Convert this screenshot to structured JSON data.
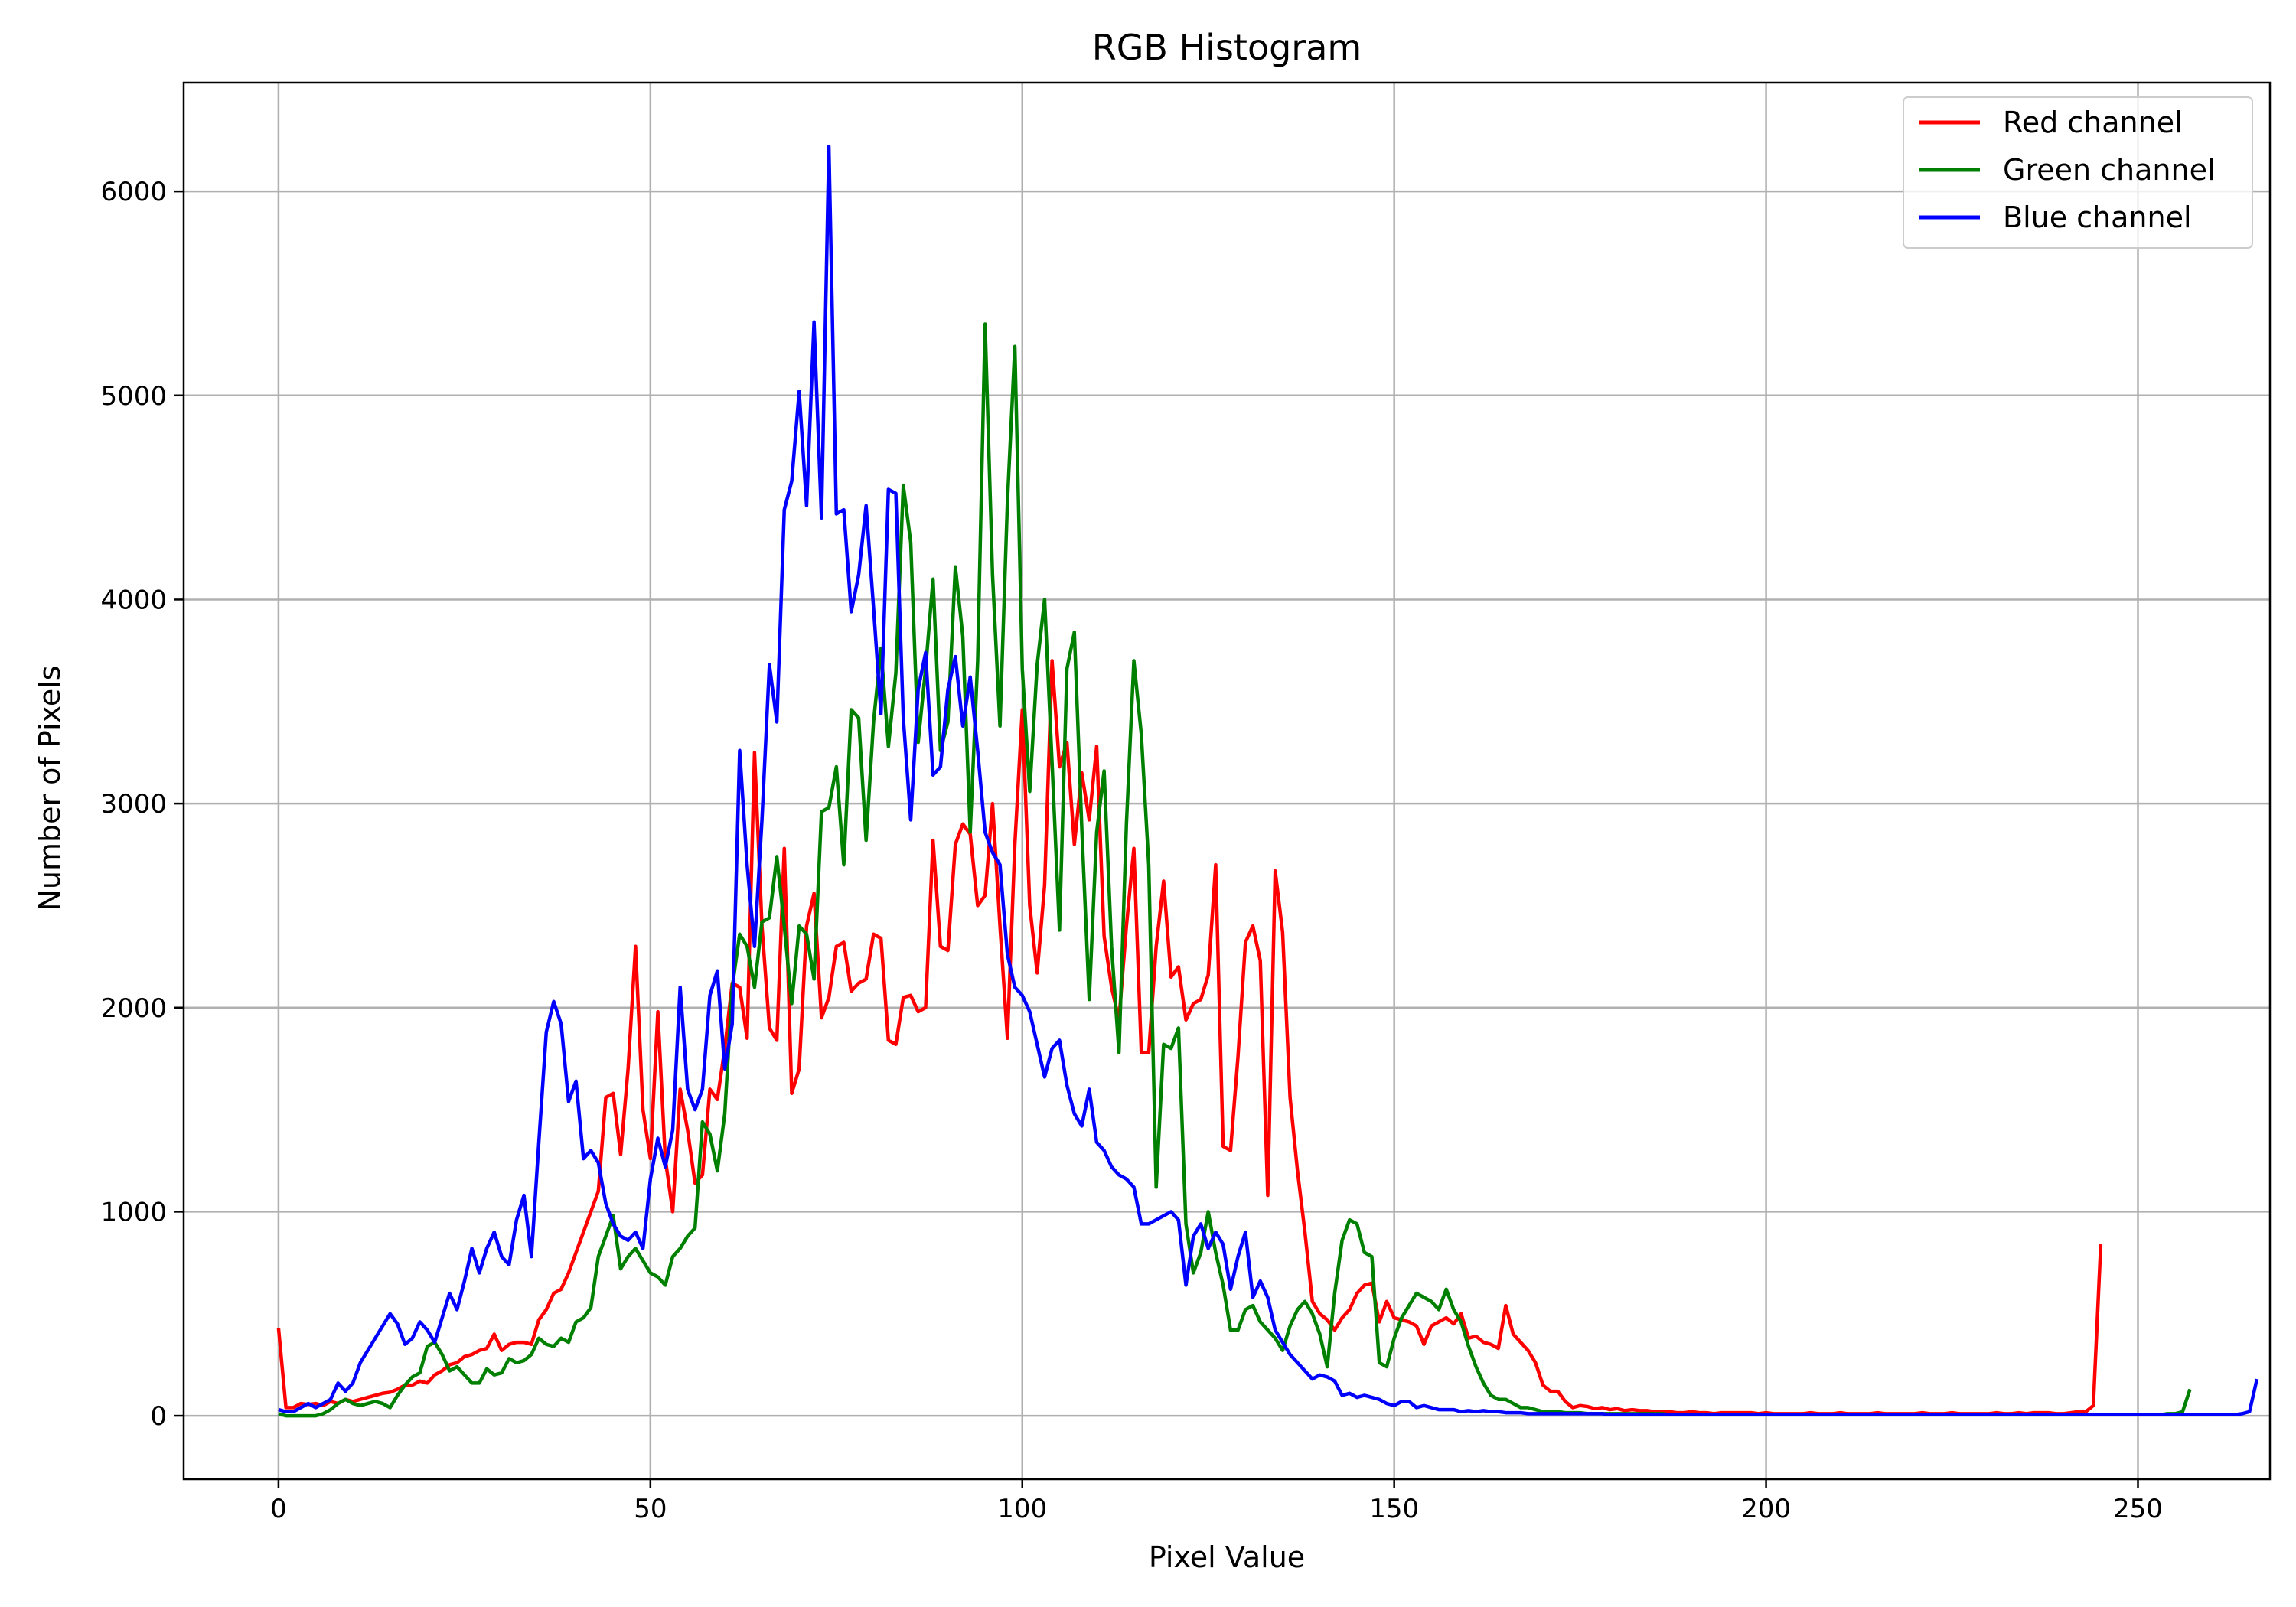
{
  "chart_data": {
    "type": "line",
    "title": "RGB Histogram",
    "xlabel": "Pixel Value",
    "ylabel": "Number of Pixels",
    "xlim": [
      -12.75,
      267.75
    ],
    "ylim": [
      -311,
      6533
    ],
    "xticks": [
      0,
      50,
      100,
      150,
      200,
      250
    ],
    "yticks": [
      0,
      1000,
      2000,
      3000,
      4000,
      5000,
      6000
    ],
    "grid": true,
    "legend_position": "top-right",
    "x_start": 0,
    "series": [
      {
        "name": "Red channel",
        "color": "#ff0000",
        "values": [
          430,
          40,
          40,
          60,
          55,
          60,
          50,
          70,
          60,
          80,
          70,
          80,
          90,
          100,
          110,
          115,
          130,
          150,
          150,
          170,
          160,
          200,
          220,
          250,
          260,
          290,
          300,
          320,
          330,
          400,
          320,
          350,
          360,
          360,
          350,
          470,
          520,
          600,
          620,
          700,
          800,
          900,
          1000,
          1100,
          1560,
          1580,
          1280,
          1700,
          2300,
          1500,
          1260,
          1980,
          1260,
          1000,
          1600,
          1400,
          1140,
          1180,
          1600,
          1550,
          1800,
          2120,
          2100,
          1850,
          3250,
          2400,
          1900,
          1840,
          2780,
          1580,
          1700,
          2400,
          2560,
          1950,
          2050,
          2300,
          2320,
          2080,
          2120,
          2140,
          2360,
          2340,
          1840,
          1820,
          2050,
          2060,
          1980,
          2000,
          2820,
          2300,
          2280,
          2800,
          2900,
          2850,
          2500,
          2550,
          3000,
          2400,
          1850,
          2800,
          3460,
          2500,
          2170,
          2600,
          3700,
          3180,
          3300,
          2800,
          3150,
          2920,
          3280,
          2350,
          2100,
          1940,
          2400,
          2780,
          1780,
          1780,
          2300,
          2620,
          2150,
          2200,
          1940,
          2020,
          2040,
          2160,
          2700,
          1320,
          1300,
          1760,
          2320,
          2400,
          2230,
          1080,
          2670,
          2370,
          1560,
          1200,
          900,
          560,
          500,
          470,
          420,
          480,
          520,
          600,
          640,
          650,
          460,
          560,
          480,
          470,
          460,
          440,
          350,
          440,
          460,
          480,
          450,
          500,
          380,
          390,
          360,
          350,
          330,
          540,
          400,
          360,
          320,
          260,
          150,
          120,
          120,
          70,
          40,
          50,
          45,
          35,
          40,
          30,
          35,
          25,
          30,
          25,
          25,
          20,
          20,
          20,
          15,
          15,
          20,
          15,
          15,
          10,
          15,
          15,
          15,
          15,
          15,
          10,
          15,
          10,
          10,
          10,
          10,
          10,
          15,
          10,
          10,
          10,
          15,
          10,
          10,
          10,
          10,
          15,
          10,
          10,
          10,
          10,
          10,
          15,
          10,
          10,
          10,
          15,
          10,
          10,
          10,
          10,
          10,
          15,
          10,
          10,
          15,
          10,
          15,
          15,
          15,
          10,
          10,
          15,
          20,
          20,
          50,
          840
        ]
      },
      {
        "name": "Green channel",
        "color": "#008000",
        "values": [
          10,
          0,
          0,
          0,
          0,
          0,
          10,
          30,
          60,
          80,
          60,
          50,
          60,
          70,
          60,
          40,
          100,
          150,
          190,
          210,
          340,
          360,
          300,
          220,
          240,
          200,
          160,
          160,
          230,
          200,
          210,
          280,
          260,
          270,
          300,
          380,
          350,
          340,
          380,
          360,
          460,
          480,
          530,
          780,
          880,
          980,
          720,
          780,
          820,
          760,
          700,
          680,
          640,
          780,
          820,
          880,
          920,
          1440,
          1380,
          1200,
          1480,
          2100,
          2360,
          2300,
          2100,
          2420,
          2440,
          2740,
          2400,
          2020,
          2400,
          2360,
          2140,
          2960,
          2980,
          3180,
          2700,
          3460,
          3420,
          2820,
          3400,
          3760,
          3280,
          3640,
          4560,
          4280,
          3300,
          3660,
          4100,
          3260,
          3400,
          4160,
          3820,
          2860,
          3700,
          5350,
          4120,
          3380,
          4480,
          5240,
          3660,
          3060,
          3680,
          4000,
          3200,
          2380,
          3660,
          3840,
          2880,
          2040,
          2860,
          3160,
          2300,
          1780,
          2900,
          3700,
          3340,
          2700,
          1120,
          1820,
          1800,
          1900,
          940,
          700,
          800,
          1000,
          800,
          640,
          420,
          420,
          520,
          540,
          460,
          420,
          380,
          320,
          440,
          520,
          560,
          500,
          400,
          240,
          600,
          860,
          960,
          940,
          800,
          780,
          260,
          240,
          380,
          480,
          540,
          600,
          580,
          560,
          520,
          620,
          520,
          460,
          340,
          240,
          160,
          100,
          80,
          80,
          60,
          40,
          40,
          30,
          20,
          20,
          20,
          15,
          15,
          15,
          10,
          10,
          10,
          10,
          10,
          10,
          10,
          10,
          10,
          10,
          10,
          5,
          5,
          5,
          5,
          5,
          5,
          5,
          5,
          5,
          5,
          5,
          5,
          5,
          5,
          5,
          5,
          5,
          5,
          5,
          5,
          5,
          5,
          5,
          5,
          5,
          5,
          5,
          5,
          5,
          5,
          5,
          5,
          5,
          5,
          5,
          5,
          5,
          5,
          5,
          5,
          5,
          5,
          5,
          5,
          5,
          5,
          5,
          5,
          5,
          5,
          5,
          5,
          5,
          5,
          5,
          5,
          5,
          5,
          5,
          5,
          5,
          5,
          5,
          5,
          5,
          5,
          5,
          10,
          10,
          20,
          130
        ]
      },
      {
        "name": "Blue channel",
        "color": "#0000ff",
        "values": [
          30,
          20,
          20,
          40,
          60,
          40,
          60,
          80,
          160,
          120,
          160,
          260,
          320,
          380,
          440,
          500,
          450,
          350,
          380,
          460,
          420,
          360,
          480,
          600,
          520,
          660,
          820,
          700,
          820,
          900,
          780,
          740,
          960,
          1080,
          780,
          1340,
          1880,
          2030,
          1920,
          1540,
          1640,
          1260,
          1300,
          1240,
          1040,
          940,
          880,
          860,
          900,
          820,
          1160,
          1360,
          1220,
          1400,
          2100,
          1600,
          1500,
          1600,
          2060,
          2180,
          1700,
          1920,
          3260,
          2700,
          2300,
          2920,
          3680,
          3400,
          4440,
          4580,
          5020,
          4460,
          5360,
          4400,
          6220,
          4420,
          4440,
          3940,
          4120,
          4460,
          3960,
          3440,
          4540,
          4520,
          3420,
          2920,
          3560,
          3740,
          3140,
          3180,
          3560,
          3720,
          3380,
          3620,
          3260,
          2860,
          2760,
          2700,
          2260,
          2100,
          2060,
          1980,
          1820,
          1660,
          1800,
          1840,
          1620,
          1480,
          1420,
          1600,
          1340,
          1300,
          1220,
          1180,
          1160,
          1120,
          940,
          940,
          960,
          980,
          1000,
          960,
          640,
          880,
          940,
          820,
          900,
          840,
          620,
          780,
          900,
          580,
          660,
          580,
          420,
          360,
          300,
          260,
          220,
          180,
          200,
          190,
          170,
          100,
          110,
          90,
          100,
          90,
          80,
          60,
          50,
          70,
          70,
          40,
          50,
          40,
          30,
          30,
          30,
          20,
          25,
          20,
          25,
          20,
          20,
          15,
          15,
          15,
          10,
          10,
          10,
          10,
          10,
          10,
          10,
          10,
          10,
          10,
          10,
          5,
          5,
          5,
          5,
          5,
          5,
          5,
          5,
          5,
          5,
          5,
          5,
          5,
          5,
          5,
          5,
          5,
          5,
          5,
          5,
          5,
          5,
          5,
          5,
          5,
          5,
          5,
          5,
          5,
          5,
          5,
          5,
          5,
          5,
          5,
          5,
          5,
          5,
          5,
          5,
          5,
          5,
          5,
          5,
          5,
          5,
          5,
          5,
          5,
          5,
          5,
          5,
          5,
          5,
          5,
          5,
          5,
          5,
          5,
          5,
          5,
          5,
          5,
          5,
          5,
          5,
          5,
          5,
          5,
          5,
          5,
          5,
          5,
          5,
          5,
          5,
          5,
          5,
          5,
          5,
          5,
          5,
          5,
          5,
          5,
          10,
          20,
          180
        ]
      }
    ]
  }
}
